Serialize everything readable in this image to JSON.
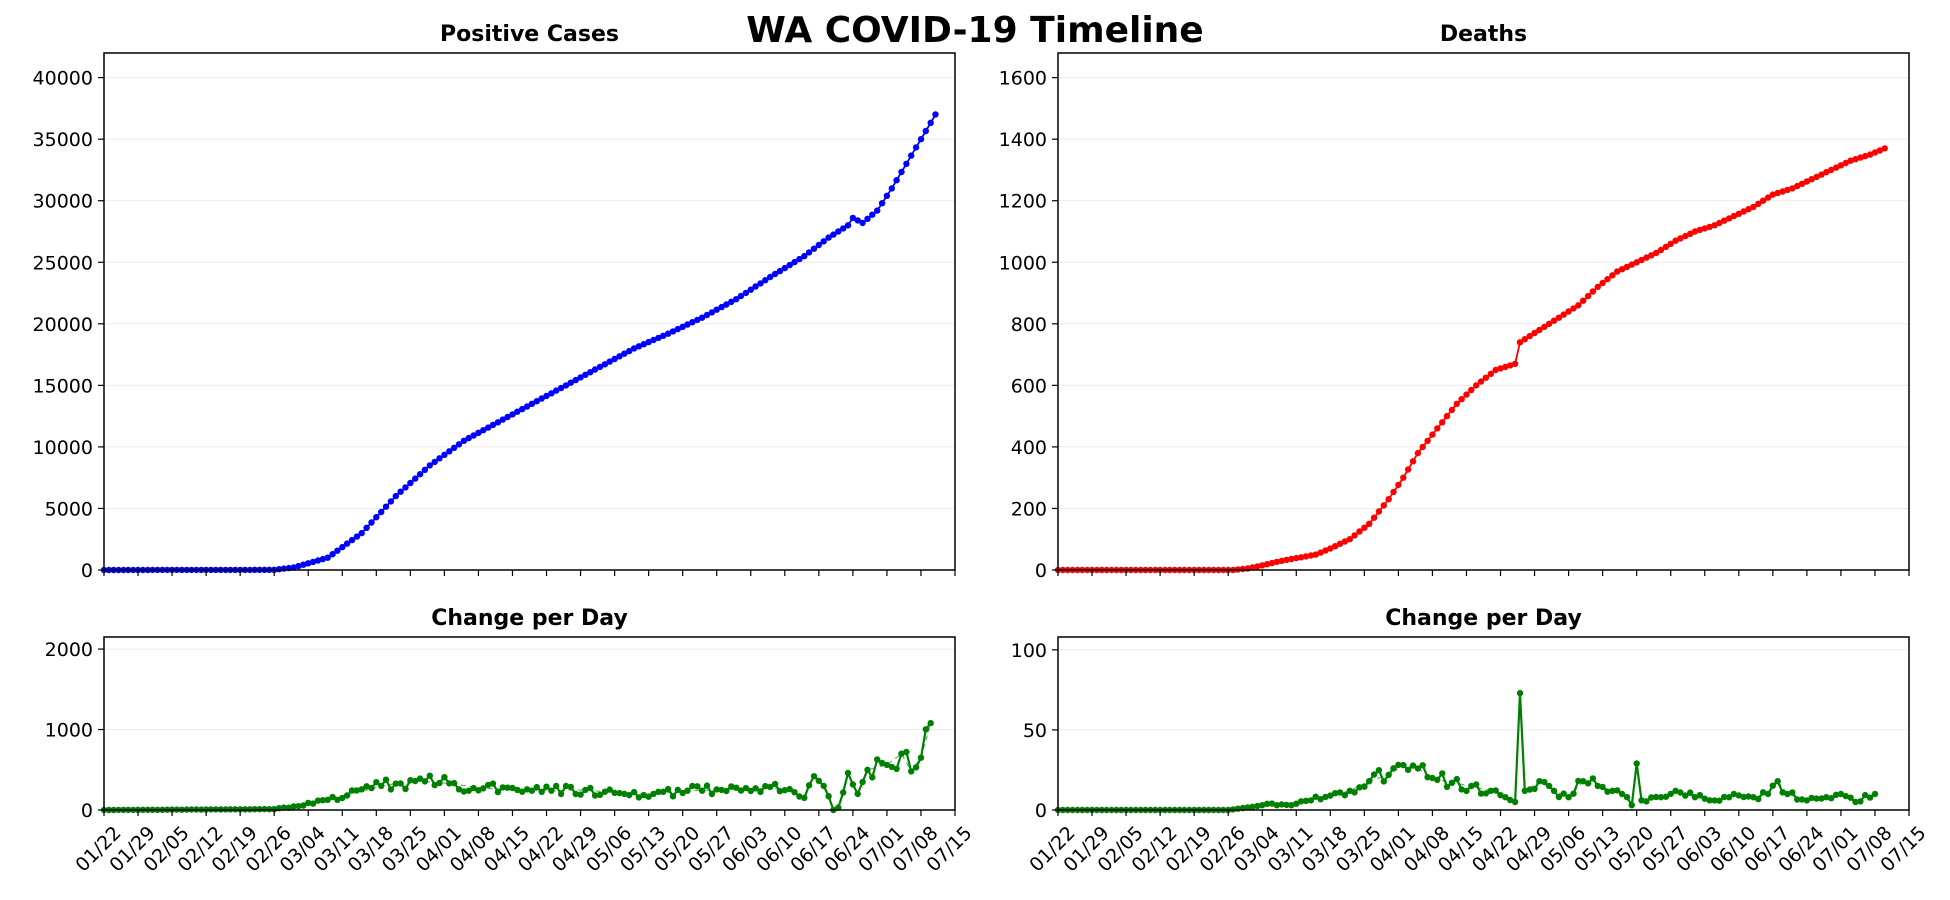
{
  "title": "WA COVID-19 Timeline",
  "chart_data": [
    {
      "type": "line",
      "title": "Positive Cases",
      "color": "#0000ff",
      "x_start": "01/22",
      "x_ticks": [
        "01/22",
        "01/29",
        "02/05",
        "02/12",
        "02/19",
        "02/26",
        "03/04",
        "03/11",
        "03/18",
        "03/25",
        "04/01",
        "04/08",
        "04/15",
        "04/22",
        "04/29",
        "05/06",
        "05/13",
        "05/20",
        "05/27",
        "06/03",
        "06/10",
        "06/17",
        "06/24",
        "07/01",
        "07/08",
        "07/15"
      ],
      "xlim": [
        "01/22",
        "07/15"
      ],
      "ylim": [
        0,
        42000
      ],
      "y_ticks": [
        0,
        5000,
        10000,
        15000,
        20000,
        25000,
        30000,
        35000,
        40000
      ],
      "keypoints": [
        [
          "01/22",
          1
        ],
        [
          "02/20",
          10
        ],
        [
          "02/26",
          20
        ],
        [
          "03/01",
          200
        ],
        [
          "03/08",
          1000
        ],
        [
          "03/15",
          3000
        ],
        [
          "03/22",
          6000
        ],
        [
          "03/29",
          8500
        ],
        [
          "04/05",
          10500
        ],
        [
          "04/12",
          12000
        ],
        [
          "04/19",
          13500
        ],
        [
          "04/26",
          15000
        ],
        [
          "05/03",
          16500
        ],
        [
          "05/10",
          18000
        ],
        [
          "05/17",
          19200
        ],
        [
          "05/24",
          20500
        ],
        [
          "05/31",
          22000
        ],
        [
          "06/07",
          23800
        ],
        [
          "06/14",
          25500
        ],
        [
          "06/19",
          27000
        ],
        [
          "06/23",
          28000
        ],
        [
          "06/24",
          28600
        ],
        [
          "06/26",
          28200
        ],
        [
          "06/29",
          29200
        ],
        [
          "07/02",
          31000
        ],
        [
          "07/05",
          33000
        ],
        [
          "07/08",
          35000
        ],
        [
          "07/11",
          37000
        ]
      ]
    },
    {
      "type": "line",
      "title": "Change per Day",
      "color": "#008000",
      "x_start": "01/22",
      "x_ticks": [
        "01/22",
        "01/29",
        "02/05",
        "02/12",
        "02/19",
        "02/26",
        "03/04",
        "03/11",
        "03/18",
        "03/25",
        "04/01",
        "04/08",
        "04/15",
        "04/22",
        "04/29",
        "05/06",
        "05/13",
        "05/20",
        "05/27",
        "06/03",
        "06/10",
        "06/17",
        "06/24",
        "07/01",
        "07/08",
        "07/15"
      ],
      "xlim": [
        "01/22",
        "07/15"
      ],
      "ylim": [
        0,
        2150
      ],
      "y_ticks": [
        0,
        1000,
        2000
      ],
      "keypoints": [
        [
          "01/22",
          0
        ],
        [
          "02/26",
          10
        ],
        [
          "03/05",
          80
        ],
        [
          "03/12",
          180
        ],
        [
          "03/19",
          300
        ],
        [
          "03/26",
          360
        ],
        [
          "04/02",
          330
        ],
        [
          "04/09",
          270
        ],
        [
          "04/16",
          250
        ],
        [
          "04/23",
          240
        ],
        [
          "04/30",
          250
        ],
        [
          "05/07",
          210
        ],
        [
          "05/14",
          200
        ],
        [
          "05/21",
          240
        ],
        [
          "05/28",
          250
        ],
        [
          "06/04",
          270
        ],
        [
          "06/11",
          260
        ],
        [
          "06/14",
          150
        ],
        [
          "06/16",
          420
        ],
        [
          "06/18",
          300
        ],
        [
          "06/20",
          0
        ],
        [
          "06/21",
          30
        ],
        [
          "06/23",
          460
        ],
        [
          "06/25",
          200
        ],
        [
          "06/27",
          500
        ],
        [
          "07/01",
          560
        ],
        [
          "07/04",
          700
        ],
        [
          "07/06",
          480
        ],
        [
          "07/08",
          650
        ],
        [
          "07/10",
          1080
        ]
      ]
    },
    {
      "type": "line",
      "title": "Deaths",
      "color": "#ff0000",
      "x_start": "01/22",
      "x_ticks": [
        "01/22",
        "01/29",
        "02/05",
        "02/12",
        "02/19",
        "02/26",
        "03/04",
        "03/11",
        "03/18",
        "03/25",
        "04/01",
        "04/08",
        "04/15",
        "04/22",
        "04/29",
        "05/06",
        "05/13",
        "05/20",
        "05/27",
        "06/03",
        "06/10",
        "06/17",
        "06/24",
        "07/01",
        "07/08",
        "07/15"
      ],
      "xlim": [
        "01/22",
        "07/15"
      ],
      "ylim": [
        0,
        1680
      ],
      "y_ticks": [
        0,
        200,
        400,
        600,
        800,
        1000,
        1200,
        1400,
        1600
      ],
      "keypoints": [
        [
          "01/22",
          0
        ],
        [
          "02/27",
          0
        ],
        [
          "03/01",
          5
        ],
        [
          "03/04",
          15
        ],
        [
          "03/08",
          30
        ],
        [
          "03/15",
          50
        ],
        [
          "03/18",
          70
        ],
        [
          "03/22",
          100
        ],
        [
          "03/26",
          150
        ],
        [
          "03/30",
          230
        ],
        [
          "04/02",
          300
        ],
        [
          "04/05",
          380
        ],
        [
          "04/09",
          460
        ],
        [
          "04/13",
          540
        ],
        [
          "04/17",
          600
        ],
        [
          "04/21",
          650
        ],
        [
          "04/25",
          670
        ],
        [
          "04/26",
          740
        ],
        [
          "04/30",
          780
        ],
        [
          "05/04",
          820
        ],
        [
          "05/08",
          860
        ],
        [
          "05/12",
          920
        ],
        [
          "05/16",
          970
        ],
        [
          "05/20",
          1000
        ],
        [
          "05/24",
          1030
        ],
        [
          "05/28",
          1070
        ],
        [
          "06/01",
          1100
        ],
        [
          "06/05",
          1120
        ],
        [
          "06/09",
          1150
        ],
        [
          "06/13",
          1180
        ],
        [
          "06/17",
          1220
        ],
        [
          "06/21",
          1240
        ],
        [
          "06/25",
          1270
        ],
        [
          "06/29",
          1300
        ],
        [
          "07/03",
          1330
        ],
        [
          "07/07",
          1350
        ],
        [
          "07/10",
          1370
        ]
      ]
    },
    {
      "type": "line",
      "title": "Change per Day",
      "color": "#008000",
      "x_start": "01/22",
      "x_ticks": [
        "01/22",
        "01/29",
        "02/05",
        "02/12",
        "02/19",
        "02/26",
        "03/04",
        "03/11",
        "03/18",
        "03/25",
        "04/01",
        "04/08",
        "04/15",
        "04/22",
        "04/29",
        "05/06",
        "05/13",
        "05/20",
        "05/27",
        "06/03",
        "06/10",
        "06/17",
        "06/24",
        "07/01",
        "07/08",
        "07/15"
      ],
      "xlim": [
        "01/22",
        "07/15"
      ],
      "ylim": [
        0,
        108
      ],
      "y_ticks": [
        0,
        50,
        100
      ],
      "keypoints": [
        [
          "01/22",
          0
        ],
        [
          "02/26",
          0
        ],
        [
          "03/02",
          2
        ],
        [
          "03/06",
          4
        ],
        [
          "03/10",
          3
        ],
        [
          "03/14",
          6
        ],
        [
          "03/18",
          9
        ],
        [
          "03/22",
          12
        ],
        [
          "03/26",
          18
        ],
        [
          "03/30",
          22
        ],
        [
          "04/02",
          28
        ],
        [
          "04/05",
          26
        ],
        [
          "04/08",
          20
        ],
        [
          "04/12",
          17
        ],
        [
          "04/16",
          15
        ],
        [
          "04/20",
          12
        ],
        [
          "04/23",
          8
        ],
        [
          "04/25",
          5
        ],
        [
          "04/26",
          73
        ],
        [
          "04/27",
          12
        ],
        [
          "04/30",
          18
        ],
        [
          "05/03",
          12
        ],
        [
          "05/06",
          8
        ],
        [
          "05/09",
          18
        ],
        [
          "05/12",
          15
        ],
        [
          "05/15",
          12
        ],
        [
          "05/18",
          8
        ],
        [
          "05/19",
          3
        ],
        [
          "05/20",
          29
        ],
        [
          "05/21",
          6
        ],
        [
          "05/25",
          8
        ],
        [
          "05/28",
          12
        ],
        [
          "06/01",
          8
        ],
        [
          "06/05",
          6
        ],
        [
          "06/09",
          10
        ],
        [
          "06/13",
          8
        ],
        [
          "06/16",
          10
        ],
        [
          "06/18",
          18
        ],
        [
          "06/20",
          10
        ],
        [
          "06/24",
          6
        ],
        [
          "06/28",
          8
        ],
        [
          "07/01",
          10
        ],
        [
          "07/04",
          5
        ],
        [
          "07/08",
          10
        ]
      ]
    }
  ]
}
